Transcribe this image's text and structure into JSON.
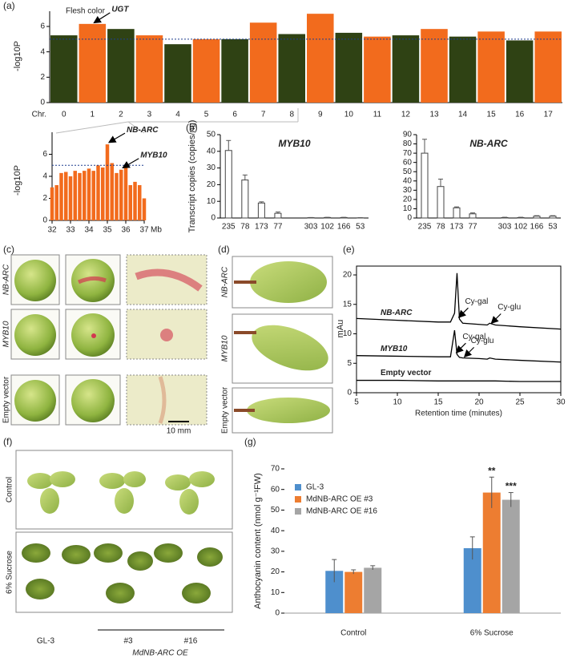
{
  "panel_labels": [
    "(a)",
    "(b)",
    "(c)",
    "(d)",
    "(e)",
    "(f)",
    "(g)"
  ],
  "chart_data": [
    {
      "type": "manhattan",
      "title": "Flesh color",
      "ylabel": "-log10P",
      "xlabel": "Chr.",
      "categories": [
        "0",
        "1",
        "2",
        "3",
        "4",
        "5",
        "6",
        "7",
        "8",
        "9",
        "10",
        "11",
        "12",
        "13",
        "14",
        "15",
        "16",
        "17"
      ],
      "values": [
        5.3,
        6.2,
        5.8,
        5.3,
        4.6,
        5.0,
        5.0,
        6.3,
        5.4,
        7.0,
        5.5,
        5.2,
        5.3,
        5.8,
        5.2,
        5.6,
        4.9,
        5.6
      ],
      "colors": [
        "#2f4214",
        "#f26b1d"
      ],
      "threshold": 5,
      "threshold_color": "#1f3f8f",
      "ylim": [
        0,
        7.2
      ],
      "yticks": [
        0,
        2,
        4,
        6
      ],
      "annotations": [
        {
          "text": "UGT",
          "x": "1",
          "y": 6.2
        }
      ]
    },
    {
      "type": "scatter",
      "ylabel": "-log10P",
      "xlabel": "Mb",
      "color": "#f26b1d",
      "x": [
        32,
        32.25,
        32.5,
        32.75,
        33,
        33.25,
        33.5,
        33.75,
        34,
        34.25,
        34.5,
        34.75,
        35,
        35.25,
        35.5,
        35.75,
        36,
        36.25,
        36.5,
        36.75,
        37
      ],
      "values": [
        3.0,
        3.2,
        4.3,
        4.4,
        4.0,
        4.5,
        4.3,
        4.5,
        4.7,
        4.5,
        5.0,
        4.8,
        6.9,
        5.2,
        4.3,
        4.6,
        4.9,
        3.2,
        3.5,
        3.2,
        2.0
      ],
      "threshold": 5,
      "threshold_color": "#1f3f8f",
      "xlim": [
        32,
        37
      ],
      "xticks": [
        32,
        33,
        34,
        35,
        36,
        37
      ],
      "ylim": [
        0,
        8
      ],
      "yticks": [
        0,
        2,
        4,
        6
      ],
      "annotations": [
        {
          "text": "NB-ARC",
          "x": 35,
          "y": 6.9
        },
        {
          "text": "MYB10",
          "x": 35.75,
          "y": 4.6
        }
      ]
    },
    {
      "type": "bar",
      "title": "MYB10",
      "ylabel": "Transcript copies (copies/ng)",
      "categories": [
        "235",
        "78",
        "173",
        "77",
        "303",
        "102",
        "166",
        "53"
      ],
      "values": [
        40.5,
        22.8,
        9.0,
        2.8,
        0.2,
        0.3,
        0.3,
        0.1
      ],
      "errors": [
        6.0,
        3.0,
        0.7,
        0.8,
        0.1,
        0.1,
        0.1,
        0.1
      ],
      "ylim": [
        0,
        50
      ],
      "yticks": [
        0,
        10,
        20,
        30,
        40,
        50
      ]
    },
    {
      "type": "bar",
      "title": "NB-ARC",
      "categories": [
        "235",
        "78",
        "173",
        "77",
        "303",
        "102",
        "166",
        "53"
      ],
      "values": [
        70,
        34,
        11,
        4.5,
        0.5,
        0.5,
        2,
        2
      ],
      "errors": [
        15,
        8,
        1,
        1,
        0.3,
        0.3,
        0.5,
        0.5
      ],
      "ylim": [
        0,
        90
      ],
      "yticks": [
        0,
        10,
        20,
        30,
        40,
        50,
        60,
        70,
        80,
        90
      ]
    },
    {
      "type": "line",
      "ylabel": "mAu",
      "xlabel": "Retention time (minutes)",
      "x": [
        5,
        10,
        15,
        16.5,
        17,
        17.3,
        17.6,
        18,
        20,
        21,
        21.3,
        22,
        25,
        30
      ],
      "series": [
        {
          "name": "NB-ARC",
          "color": "#000000",
          "values": [
            12.6,
            12.3,
            12.0,
            12.0,
            13.5,
            20.3,
            12.5,
            11.8,
            11.6,
            11.5,
            11.8,
            11.5,
            11.2,
            10.8
          ],
          "peak_labels": [
            "Cy-gal",
            "Cy-glu"
          ]
        },
        {
          "name": "MYB10",
          "color": "#000000",
          "values": [
            6.3,
            6.2,
            6.1,
            6.1,
            10.6,
            6.5,
            6.0,
            5.9,
            5.8,
            5.7,
            5.9,
            5.7,
            5.5,
            5.2
          ],
          "peak_labels": [
            "Cy-gal",
            "Cy-glu"
          ]
        },
        {
          "name": "Empty vector",
          "color": "#000000",
          "values": [
            2.1,
            2.1,
            2.0,
            2.0,
            2.0,
            2.0,
            2.0,
            2.0,
            2.0,
            2.0,
            2.0,
            2.0,
            1.9,
            1.9
          ]
        }
      ],
      "xlim": [
        5,
        30
      ],
      "xticks": [
        5,
        10,
        15,
        20,
        25,
        30
      ],
      "ylim": [
        0,
        21.5
      ],
      "yticks": [
        0,
        5,
        10,
        15,
        20
      ]
    },
    {
      "type": "bar",
      "ylabel": "Anthocyanin content (nmol g⁻¹FW)",
      "categories": [
        "Control",
        "6% Sucrose"
      ],
      "series": [
        {
          "name": "GL-3",
          "color": "#4e8fcd",
          "values": [
            20.5,
            31.5
          ],
          "errors": [
            5.5,
            5.5
          ],
          "significance": [
            null,
            null
          ]
        },
        {
          "name": "MdNB-ARC OE #3",
          "color": "#ed7d31",
          "values": [
            20.0,
            58.5
          ],
          "errors": [
            1.0,
            7.5
          ],
          "significance": [
            null,
            "**"
          ]
        },
        {
          "name": "MdNB-ARC OE #16",
          "color": "#a5a5a5",
          "values": [
            22.0,
            55.0
          ],
          "errors": [
            1.0,
            3.5
          ],
          "significance": [
            null,
            "***"
          ]
        }
      ],
      "ylim": [
        0,
        70
      ],
      "yticks": [
        0,
        10,
        20,
        30,
        40,
        50,
        60,
        70
      ]
    }
  ],
  "photo_c": {
    "rows": [
      "NB-ARC",
      "MYB10",
      "Empty vector"
    ],
    "scale_bar": "10 mm"
  },
  "photo_d": {
    "rows": [
      "NB-ARC",
      "MYB10",
      "Empty vector"
    ]
  },
  "photo_f": {
    "rows": [
      "Control",
      "6% Sucrose"
    ],
    "lines": [
      "GL-3",
      "#3",
      "#16"
    ],
    "group": "MdNB-ARC OE"
  }
}
